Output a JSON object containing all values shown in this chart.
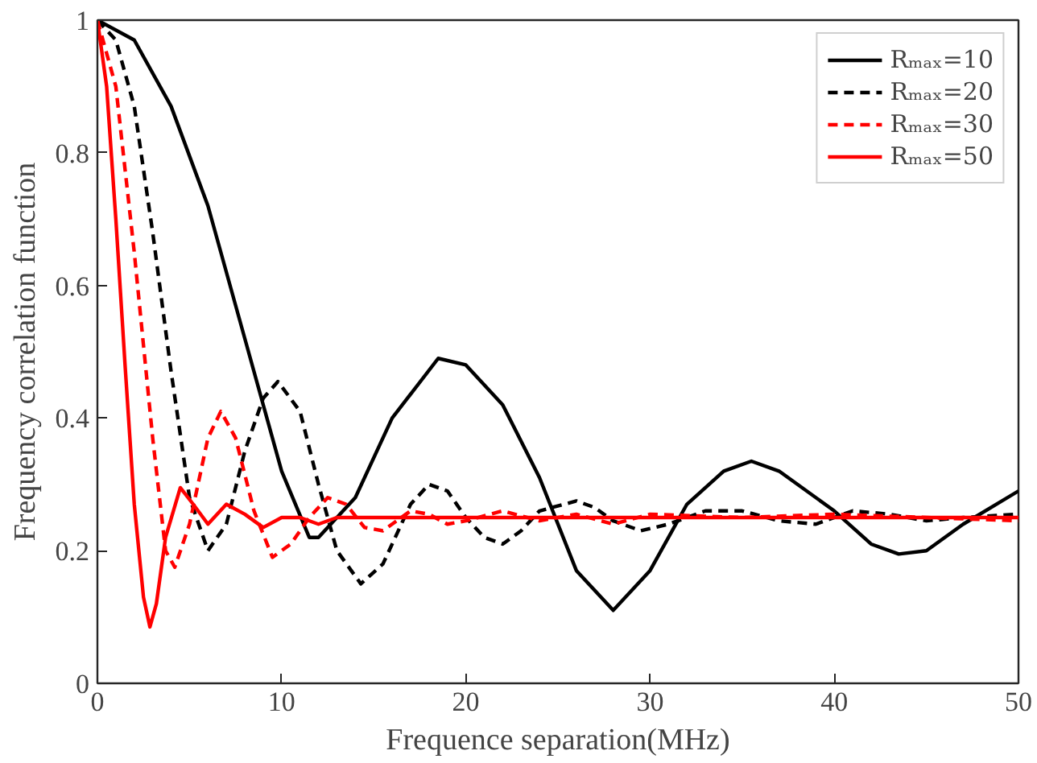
{
  "chart_data": {
    "type": "line",
    "xlabel": "Frequence separation(MHz)",
    "ylabel": "Frequency correlation function",
    "xlim": [
      0,
      50
    ],
    "xticks": [
      0,
      10,
      20,
      30,
      40,
      50
    ],
    "ylim": [
      0,
      1
    ],
    "yticks": [
      0,
      0.2,
      0.4,
      0.6,
      0.8,
      1
    ],
    "grid": false,
    "legend": "top right",
    "series": [
      {
        "name": "Rₘₐₓ=10",
        "color": "#000000",
        "line_style": "solid",
        "x": [
          0,
          2,
          4,
          6,
          8,
          10,
          11.5,
          12,
          14,
          16,
          18.5,
          20,
          22,
          24,
          26,
          28,
          30,
          32,
          34,
          35.5,
          37,
          40,
          42,
          43.5,
          45,
          47,
          50
        ],
        "values": [
          1,
          0.97,
          0.87,
          0.72,
          0.52,
          0.32,
          0.22,
          0.22,
          0.28,
          0.4,
          0.49,
          0.48,
          0.42,
          0.31,
          0.17,
          0.11,
          0.17,
          0.27,
          0.32,
          0.335,
          0.32,
          0.26,
          0.21,
          0.195,
          0.2,
          0.24,
          0.29
        ]
      },
      {
        "name": "Rₘₐₓ=20",
        "color": "#000000",
        "line_style": "dashed",
        "x": [
          0,
          1,
          2,
          3,
          4,
          5,
          6,
          7,
          8,
          9,
          9.8,
          11,
          12,
          13,
          14.3,
          15.5,
          17,
          18,
          19,
          20,
          21,
          22,
          23,
          24,
          26,
          27,
          28,
          29.5,
          31,
          33,
          35,
          37,
          39,
          41,
          43,
          45,
          47,
          50
        ],
        "values": [
          1,
          0.97,
          0.87,
          0.68,
          0.47,
          0.28,
          0.2,
          0.24,
          0.35,
          0.43,
          0.455,
          0.41,
          0.3,
          0.2,
          0.15,
          0.18,
          0.27,
          0.3,
          0.29,
          0.25,
          0.22,
          0.21,
          0.23,
          0.26,
          0.275,
          0.265,
          0.245,
          0.23,
          0.24,
          0.26,
          0.26,
          0.245,
          0.24,
          0.26,
          0.255,
          0.245,
          0.25,
          0.255
        ]
      },
      {
        "name": "Rₘₐₓ=30",
        "color": "#ff0000",
        "line_style": "dashed",
        "x": [
          0,
          1,
          2,
          3,
          3.7,
          4.2,
          5,
          6,
          6.7,
          7.5,
          8.5,
          9.5,
          10.5,
          11.5,
          12.5,
          13.5,
          14.5,
          15.5,
          17,
          18,
          19,
          20,
          22,
          24,
          26,
          28,
          30,
          35,
          40,
          45,
          50
        ],
        "values": [
          1,
          0.9,
          0.65,
          0.37,
          0.2,
          0.175,
          0.24,
          0.37,
          0.41,
          0.37,
          0.26,
          0.19,
          0.21,
          0.25,
          0.28,
          0.27,
          0.235,
          0.23,
          0.26,
          0.255,
          0.24,
          0.245,
          0.26,
          0.245,
          0.255,
          0.24,
          0.255,
          0.25,
          0.255,
          0.25,
          0.245
        ]
      },
      {
        "name": "Rₘₐₓ=50",
        "color": "#ff0000",
        "line_style": "solid",
        "x": [
          0,
          0.5,
          1,
          1.5,
          2,
          2.5,
          2.85,
          3.2,
          3.7,
          4.5,
          5.2,
          6,
          7,
          8,
          9,
          10,
          11,
          12,
          13,
          15,
          20,
          30,
          40,
          50
        ],
        "values": [
          1,
          0.9,
          0.7,
          0.48,
          0.27,
          0.13,
          0.085,
          0.12,
          0.22,
          0.295,
          0.27,
          0.24,
          0.27,
          0.255,
          0.235,
          0.25,
          0.25,
          0.24,
          0.25,
          0.25,
          0.25,
          0.25,
          0.25,
          0.25
        ]
      }
    ]
  }
}
